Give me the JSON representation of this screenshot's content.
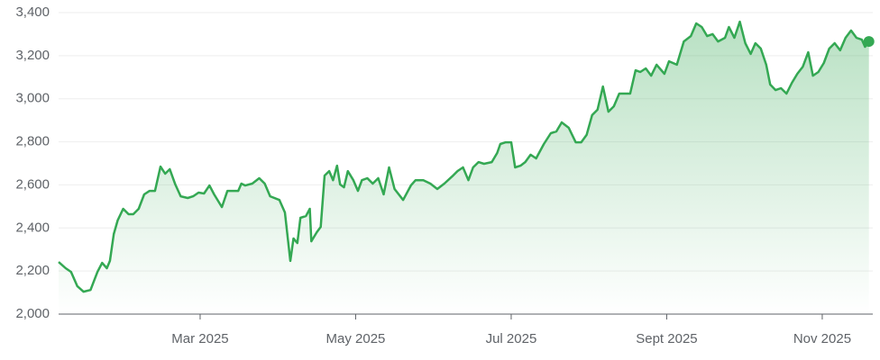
{
  "chart_data": {
    "type": "line",
    "x": [
      1.18,
      1.27,
      1.34,
      1.42,
      1.5,
      1.59,
      1.68,
      1.74,
      1.8,
      1.84,
      1.89,
      1.94,
      2.01,
      2.08,
      2.14,
      2.21,
      2.28,
      2.35,
      2.42,
      2.49,
      2.55,
      2.61,
      2.68,
      2.75,
      2.84,
      2.91,
      2.98,
      3.05,
      3.12,
      3.18,
      3.28,
      3.35,
      3.42,
      3.49,
      3.53,
      3.58,
      3.67,
      3.76,
      3.83,
      3.9,
      4.02,
      4.09,
      4.16,
      4.2,
      4.25,
      4.29,
      4.36,
      4.41,
      4.43,
      4.5,
      4.55,
      4.6,
      4.66,
      4.71,
      4.76,
      4.8,
      4.85,
      4.9,
      4.97,
      5.03,
      5.08,
      5.15,
      5.22,
      5.29,
      5.36,
      5.43,
      5.5,
      5.61,
      5.71,
      5.77,
      5.87,
      5.96,
      6.05,
      6.14,
      6.24,
      6.31,
      6.38,
      6.45,
      6.51,
      6.58,
      6.65,
      6.75,
      6.82,
      6.86,
      6.93,
      7.0,
      7.05,
      7.12,
      7.18,
      7.25,
      7.32,
      7.42,
      7.51,
      7.58,
      7.65,
      7.74,
      7.83,
      7.9,
      7.97,
      8.04,
      8.11,
      8.18,
      8.25,
      8.32,
      8.39,
      8.46,
      8.53,
      8.6,
      8.66,
      8.73,
      8.8,
      8.87,
      8.97,
      9.03,
      9.13,
      9.22,
      9.31,
      9.38,
      9.45,
      9.52,
      9.59,
      9.66,
      9.75,
      9.8,
      9.87,
      9.94,
      10.01,
      10.08,
      10.14,
      10.21,
      10.28,
      10.33,
      10.4,
      10.47,
      10.54,
      10.61,
      10.68,
      10.75,
      10.82,
      10.88,
      10.95,
      11.02,
      11.09,
      11.16,
      11.23,
      11.3,
      11.37,
      11.44,
      11.51,
      11.55,
      11.6
    ],
    "series": [
      {
        "color": "#34a853",
        "values": [
          2242,
          2213,
          2196,
          2130,
          2104,
          2112,
          2196,
          2238,
          2213,
          2247,
          2372,
          2435,
          2489,
          2464,
          2464,
          2489,
          2556,
          2572,
          2572,
          2685,
          2652,
          2673,
          2602,
          2547,
          2539,
          2547,
          2564,
          2560,
          2597,
          2556,
          2497,
          2572,
          2572,
          2572,
          2606,
          2597,
          2606,
          2631,
          2606,
          2547,
          2530,
          2472,
          2247,
          2351,
          2330,
          2447,
          2455,
          2489,
          2338,
          2380,
          2405,
          2643,
          2664,
          2622,
          2689,
          2602,
          2589,
          2664,
          2622,
          2572,
          2622,
          2631,
          2606,
          2631,
          2556,
          2681,
          2581,
          2530,
          2597,
          2622,
          2622,
          2606,
          2581,
          2606,
          2639,
          2664,
          2681,
          2622,
          2681,
          2706,
          2698,
          2706,
          2748,
          2790,
          2798,
          2798,
          2681,
          2689,
          2706,
          2740,
          2723,
          2790,
          2840,
          2848,
          2890,
          2865,
          2798,
          2798,
          2832,
          2924,
          2949,
          3057,
          2940,
          2965,
          3024,
          3024,
          3024,
          3132,
          3124,
          3141,
          3107,
          3158,
          3116,
          3174,
          3158,
          3266,
          3291,
          3350,
          3333,
          3291,
          3300,
          3266,
          3283,
          3333,
          3283,
          3358,
          3258,
          3208,
          3258,
          3233,
          3158,
          3066,
          3040,
          3049,
          3024,
          3074,
          3116,
          3149,
          3216,
          3107,
          3124,
          3166,
          3233,
          3258,
          3225,
          3283,
          3317,
          3283,
          3274,
          3241,
          3266
        ]
      }
    ],
    "xlim": [
      1.18,
      11.65
    ],
    "xticks": [
      {
        "value": 3,
        "label": "Mar 2025"
      },
      {
        "value": 5,
        "label": "May 2025"
      },
      {
        "value": 7,
        "label": "Jul 2025"
      },
      {
        "value": 9,
        "label": "Sept 2025"
      },
      {
        "value": 11,
        "label": "Nov 2025"
      }
    ],
    "ylim": [
      2000,
      3400
    ],
    "yticks": [
      {
        "value": 2000,
        "label": "2,000"
      },
      {
        "value": 2200,
        "label": "2,200"
      },
      {
        "value": 2400,
        "label": "2,400"
      },
      {
        "value": 2600,
        "label": "2,600"
      },
      {
        "value": 2800,
        "label": "2,800"
      },
      {
        "value": 3000,
        "label": "3,000"
      },
      {
        "value": 3200,
        "label": "3,200"
      },
      {
        "value": 3400,
        "label": "3,400"
      }
    ],
    "grid": true
  }
}
